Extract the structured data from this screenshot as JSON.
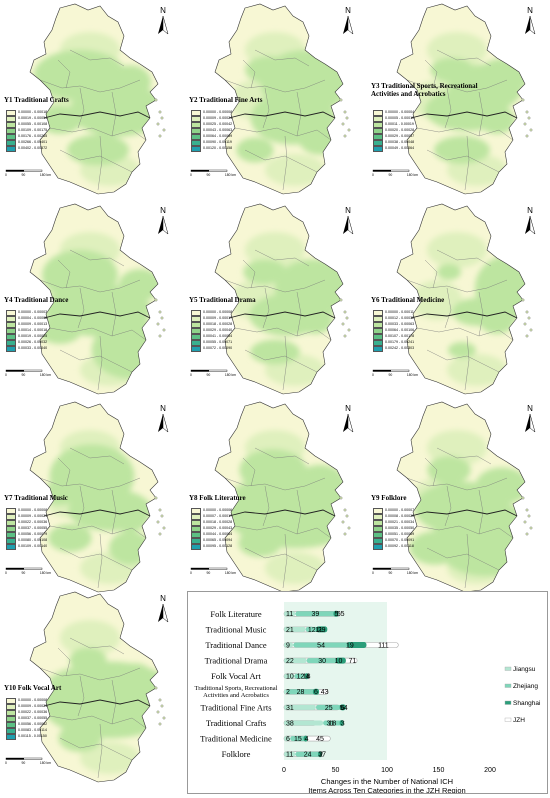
{
  "panels": [
    {
      "id": "Y1",
      "title": "Y1 Traditional Crafts",
      "legend": [
        "0.00000 - 0.00018",
        "0.00019 - 0.00054",
        "0.00055 - 0.00108",
        "0.00109 - 0.00175",
        "0.00176 - 0.00265",
        "0.00266 - 0.00401",
        "0.00402 - 0.00572"
      ]
    },
    {
      "id": "Y2",
      "title": "Y2 Traditional Fine Arts",
      "legend": [
        "0.00000 - 0.00008",
        "0.00009 - 0.00024",
        "0.00025 - 0.00042",
        "0.00043 - 0.00063",
        "0.00064 - 0.00089",
        "0.00090 - 0.00119",
        "0.00120 - 0.00158"
      ]
    },
    {
      "id": "Y3",
      "title": "Y3 Traditional Sports, Recreational Activities and Acrobatics",
      "legend": [
        "0.00000 - 0.00004",
        "0.00005 - 0.00010",
        "0.00011 - 0.00019",
        "0.00020 - 0.00028",
        "0.00029 - 0.00037",
        "0.00038 - 0.00048",
        "0.00049 - 0.00064"
      ]
    },
    {
      "id": "Y4",
      "title": "Y4 Traditional Dance",
      "legend": [
        "0.00000 - 0.00003",
        "0.00004 - 0.00008",
        "0.00009 - 0.00013",
        "0.00014 - 0.00018",
        "0.00019 - 0.00025",
        "0.00026 - 0.00032",
        "0.00033 - 0.00040"
      ]
    },
    {
      "id": "Y5",
      "title": "Y5 Traditional Drama",
      "legend": [
        "0.00000 - 0.00008",
        "0.00009 - 0.00017",
        "0.00018 - 0.00028",
        "0.00029 - 0.00040",
        "0.00041 - 0.00054",
        "0.00055 - 0.00071",
        "0.00072 - 0.00090"
      ]
    },
    {
      "id": "Y6",
      "title": "Y6 Traditional Medicine",
      "legend": [
        "0.00000 - 0.00011",
        "0.00012 - 0.00032",
        "0.00033 - 0.00063",
        "0.00064 - 0.00106",
        "0.00107 - 0.00178",
        "0.00179 - 0.00241",
        "0.00242 - 0.00303"
      ]
    },
    {
      "id": "Y7",
      "title": "Y7 Traditional Music",
      "legend": [
        "0.00000 - 0.00008",
        "0.00009 - 0.00021",
        "0.00022 - 0.00036",
        "0.00037 - 0.00055",
        "0.00056 - 0.00079",
        "0.00080 - 0.00108",
        "0.00109 - 0.00140"
      ]
    },
    {
      "id": "Y8",
      "title": "Y8 Folk Literature",
      "legend": [
        "0.00000 - 0.00006",
        "0.00007 - 0.00017",
        "0.00018 - 0.00028",
        "0.00029 - 0.00043",
        "0.00044 - 0.00064",
        "0.00065 - 0.00094",
        "0.00095 - 0.00128"
      ]
    },
    {
      "id": "Y9",
      "title": "Y9 Folklore",
      "legend": [
        "0.00000 - 0.00007",
        "0.00008 - 0.00020",
        "0.00021 - 0.00034",
        "0.00035 - 0.00050",
        "0.00051 - 0.00069",
        "0.00070 - 0.00091",
        "0.00092 - 0.00118"
      ]
    },
    {
      "id": "Y10",
      "title": "Y10 Folk Vocal Art",
      "legend": [
        "0.00000 - 0.00008",
        "0.00009 - 0.00021",
        "0.00022 - 0.00036",
        "0.00037 - 0.00055",
        "0.00056 - 0.00082",
        "0.00083 - 0.00114",
        "0.00115 - 0.00150"
      ]
    }
  ],
  "legend_colors": [
    "#f7f7d4",
    "#dff0bd",
    "#bde5a0",
    "#8fd38a",
    "#5cc084",
    "#38b08f",
    "#1f9fae"
  ],
  "north_label": "N",
  "scale_labels": [
    "0",
    "90",
    "180 km"
  ],
  "chart_data": {
    "type": "bar",
    "categories": [
      "Folk Literature",
      "Traditional Music",
      "Traditional Dance",
      "Traditional Drama",
      "Folk Vocal Art",
      "Traditional Sports, Recreational Activities and Acrobatics",
      "Traditional Fine Arts",
      "Traditional Crafts",
      "Traditional Medicine",
      "Folklore"
    ],
    "series": [
      {
        "name": "Jiangsu",
        "values": [
          11,
          21,
          9,
          22,
          10,
          2,
          31,
          38,
          6,
          11
        ],
        "color": "#b3e6d2"
      },
      {
        "name": "Zhejiang",
        "values": [
          39,
          12,
          54,
          30,
          12,
          28,
          25,
          18,
          15,
          24
        ],
        "color": "#7fd6ba"
      },
      {
        "name": "Shanghai",
        "values": [
          5,
          11,
          19,
          10,
          4,
          6,
          6,
          3,
          4,
          2
        ],
        "color": "#2b9e7a"
      },
      {
        "name": "JZH",
        "values": [
          55,
          29,
          111,
          71,
          18,
          43,
          54,
          31,
          45,
          37
        ],
        "color": "#ffffff"
      }
    ],
    "xlim": [
      0,
      200
    ],
    "xticks": [
      0,
      50,
      100,
      150,
      200
    ],
    "caption": "Changes in the Number of National ICH Items Across Ten Categories in the JZH Region"
  }
}
